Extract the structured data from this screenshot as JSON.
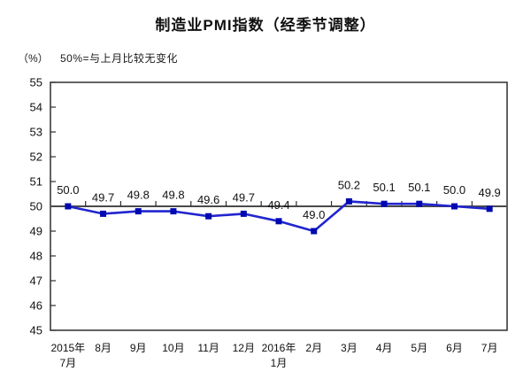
{
  "title": "制造业PMI指数（经季节调整）",
  "y_axis_unit": "（%）",
  "reference_note": "50%=与上月比较无变化",
  "chart_data": {
    "type": "line",
    "title": "制造业PMI指数（经季节调整）",
    "subtitle": "50%=与上月比较无变化",
    "y_unit": "（%）",
    "categories": [
      "2015年\n7月",
      "8月",
      "9月",
      "10月",
      "11月",
      "12月",
      "2016年\n1月",
      "2月",
      "3月",
      "4月",
      "5月",
      "6月",
      "7月"
    ],
    "values": [
      50.0,
      49.7,
      49.8,
      49.8,
      49.6,
      49.7,
      49.4,
      49.0,
      50.2,
      50.1,
      50.1,
      50.0,
      49.9
    ],
    "data_labels": [
      "50.0",
      "49.7",
      "49.8",
      "49.8",
      "49.6",
      "49.7",
      "49.4",
      "49.0",
      "50.2",
      "50.1",
      "50.1",
      "50.0",
      "49.9"
    ],
    "ylim": [
      45,
      55
    ],
    "ytick_step": 1,
    "ytick_labels": [
      "45",
      "46",
      "47",
      "48",
      "49",
      "50",
      "51",
      "52",
      "53",
      "54",
      "55"
    ],
    "reference_line": 50,
    "grid": false,
    "legend": "none",
    "line_color": "#2125cf",
    "marker_color": "#0009b0",
    "reference_line_color": "#4a4a4a",
    "axis_color": "#2e2e2e",
    "text_color": "#111111"
  }
}
